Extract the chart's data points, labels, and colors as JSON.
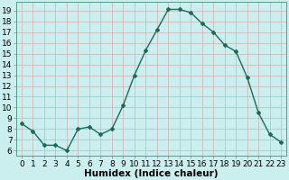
{
  "x": [
    0,
    1,
    2,
    3,
    4,
    5,
    6,
    7,
    8,
    9,
    10,
    11,
    12,
    13,
    14,
    15,
    16,
    17,
    18,
    19,
    20,
    21,
    22,
    23
  ],
  "y": [
    8.5,
    7.8,
    6.5,
    6.5,
    6.0,
    8.0,
    8.2,
    7.5,
    8.0,
    10.2,
    13.0,
    15.3,
    17.2,
    19.1,
    19.1,
    18.8,
    17.8,
    17.0,
    15.8,
    15.2,
    12.8,
    9.5,
    7.5,
    6.8
  ],
  "line_color": "#1a6b5a",
  "marker": "D",
  "marker_size": 2,
  "bg_color": "#cbefef",
  "grid_color": "#b0dada",
  "xlabel": "Humidex (Indice chaleur)",
  "ylim": [
    5.5,
    19.8
  ],
  "xlim": [
    -0.5,
    23.5
  ],
  "yticks": [
    6,
    7,
    8,
    9,
    10,
    11,
    12,
    13,
    14,
    15,
    16,
    17,
    18,
    19
  ],
  "xticks": [
    0,
    1,
    2,
    3,
    4,
    5,
    6,
    7,
    8,
    9,
    10,
    11,
    12,
    13,
    14,
    15,
    16,
    17,
    18,
    19,
    20,
    21,
    22,
    23
  ],
  "tick_label_fontsize": 6.5,
  "xlabel_fontsize": 7.5,
  "spine_color": "#5a9a8a"
}
